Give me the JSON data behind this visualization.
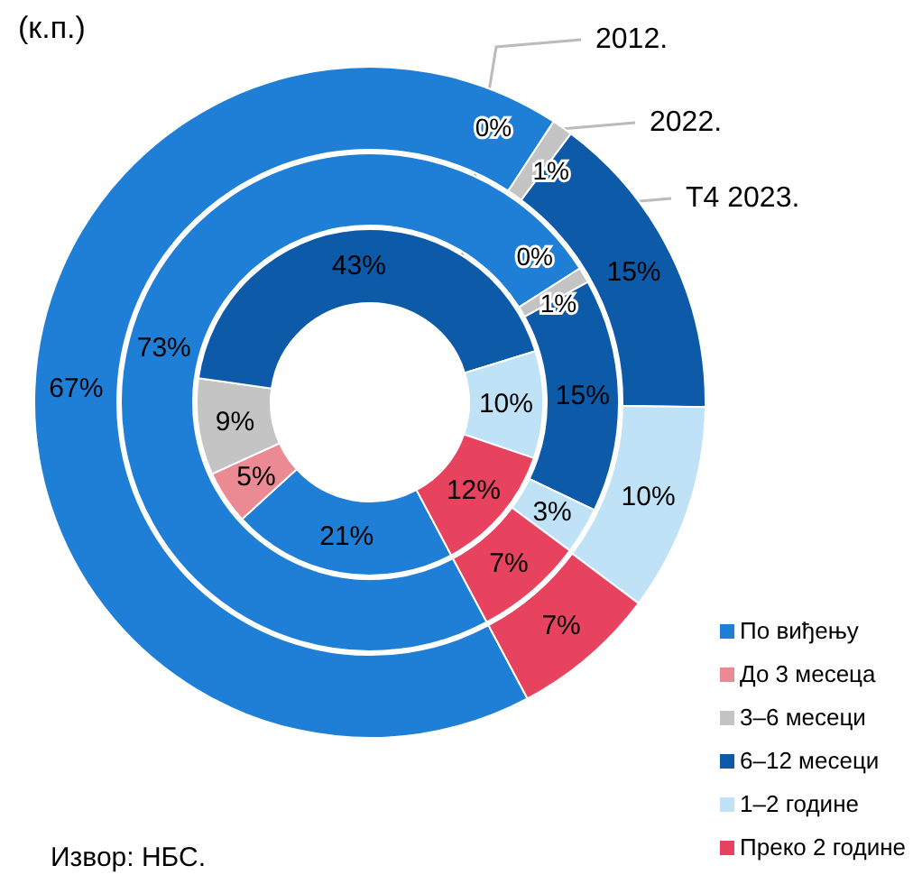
{
  "chart_data": {
    "type": "donut",
    "subtitle": "(к.п.)",
    "categories": [
      "По виђењу",
      "До 3 месеца",
      "3–6 месеци",
      "6–12 месеци",
      "1–2 године",
      "Преко 2 године"
    ],
    "colors": [
      "#1f7fd6",
      "#ec8a94",
      "#c4c4c4",
      "#0d5aa8",
      "#bfe2f6",
      "#e8435e"
    ],
    "series": [
      {
        "name": "2012.",
        "values": [
          21,
          5,
          9,
          43,
          10,
          12
        ],
        "value_labels": [
          "21%",
          "5%",
          "9%",
          "43%",
          "10%",
          "12%"
        ]
      },
      {
        "name": "2022.",
        "values": [
          73,
          0,
          1,
          15,
          3,
          7
        ],
        "value_labels": [
          "73%",
          "0%",
          "1%",
          "15%",
          "3%",
          "7%"
        ]
      },
      {
        "name": "Т4 2023.",
        "values": [
          67,
          0,
          1,
          15,
          10,
          7
        ],
        "value_labels": [
          "67%",
          "0%",
          "1%",
          "15%",
          "10%",
          "7%"
        ]
      }
    ],
    "legend": "bottom right",
    "annotations": [
      "Извор: НБС."
    ]
  }
}
